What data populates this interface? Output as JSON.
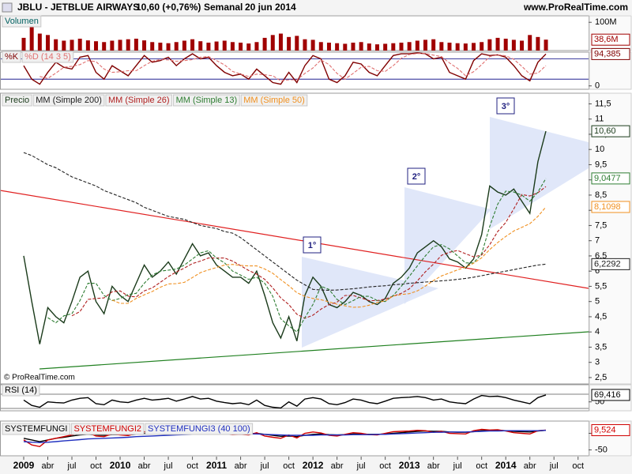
{
  "header": {
    "symbol": "JBLU - JETBLUE AIRWAYS",
    "quote": "10,60 (+0,76%)",
    "period": "Semanal",
    "date": "20 jun 2014",
    "site": "www.ProRealTime.com"
  },
  "watermark": "© ProRealTime.com",
  "time_axis": {
    "categories": [
      "2009",
      null,
      null,
      "abr",
      null,
      null,
      "jul",
      null,
      null,
      "oct",
      null,
      null,
      "2010",
      null,
      null,
      "abr",
      null,
      null,
      "jul",
      null,
      null,
      "oct",
      null,
      null,
      "2011",
      null,
      null,
      "abr",
      null,
      null,
      "jul",
      null,
      null,
      "oct",
      null,
      null,
      "2012",
      null,
      null,
      "abr",
      null,
      null,
      "jul",
      null,
      null,
      "oct",
      null,
      null,
      "2013",
      null,
      null,
      "abr",
      null,
      null,
      "jul",
      null,
      null,
      "oct",
      null,
      null,
      "2014",
      null,
      null,
      "abr",
      null,
      null,
      "jul",
      null,
      null,
      "oct",
      null,
      null
    ]
  },
  "chart_data": [
    {
      "type": "bar",
      "ylim": [
        0,
        123
      ],
      "yticks": [
        {
          "value": 100,
          "label": "100M"
        }
      ],
      "series": [
        {
          "name": "Volumen",
          "color": "#a00000",
          "legend_color": "#006060",
          "values": [
            45,
            112,
            60,
            55,
            40,
            35,
            38,
            42,
            36,
            33,
            30,
            35,
            38,
            40,
            42,
            36,
            30,
            28,
            26,
            30,
            35,
            40,
            33,
            28,
            32,
            35,
            30,
            28,
            25,
            30,
            45,
            55,
            60,
            48,
            52,
            40,
            38,
            30,
            28,
            26,
            24,
            28,
            30,
            25,
            22,
            24,
            26,
            28,
            30,
            35,
            38,
            40,
            30,
            28,
            26,
            25,
            27,
            30,
            40,
            45,
            42,
            38,
            35,
            55,
            48,
            38.6,
            null,
            null,
            null,
            null,
            null,
            null
          ],
          "value_labels": {
            "65": "38,6M"
          }
        }
      ]
    },
    {
      "type": "line",
      "ylim": [
        -10,
        100
      ],
      "yticks": [
        0
      ],
      "series": [
        {
          "name": "%K",
          "color": "#800000",
          "values": [
            60,
            20,
            5,
            40,
            70,
            55,
            50,
            85,
            90,
            40,
            20,
            60,
            45,
            30,
            60,
            90,
            70,
            75,
            85,
            60,
            80,
            95,
            80,
            85,
            60,
            40,
            30,
            35,
            20,
            50,
            30,
            10,
            5,
            40,
            10,
            60,
            90,
            80,
            20,
            10,
            30,
            70,
            65,
            40,
            30,
            60,
            90,
            95,
            95,
            98,
            95,
            80,
            85,
            40,
            30,
            20,
            75,
            95,
            90,
            92,
            85,
            60,
            30,
            15,
            70,
            94.385,
            null,
            null,
            null,
            null,
            null,
            null
          ],
          "value_labels": {
            "65": "94,385"
          }
        },
        {
          "name": "%D (14 3 5)",
          "color": "#e07070",
          "dash": true,
          "values": [
            null,
            null,
            28,
            22,
            38,
            55,
            58,
            63,
            75,
            72,
            50,
            40,
            42,
            45,
            45,
            60,
            73,
            78,
            77,
            73,
            75,
            78,
            85,
            87,
            75,
            62,
            43,
            35,
            28,
            35,
            33,
            30,
            15,
            18,
            18,
            37,
            53,
            77,
            63,
            37,
            20,
            37,
            55,
            58,
            45,
            43,
            60,
            82,
            93,
            96,
            96,
            91,
            87,
            68,
            52,
            30,
            42,
            63,
            87,
            92,
            89,
            79,
            58,
            35,
            38,
            60,
            null,
            null,
            null,
            null,
            null,
            null
          ]
        }
      ]
    },
    {
      "type": "line",
      "ylim": [
        2.29,
        11.85
      ],
      "yticks": [
        {
          "value": 2.5,
          "label": "2,5"
        },
        3,
        {
          "value": 3.5,
          "label": "3,5"
        },
        4,
        {
          "value": 4.5,
          "label": "4,5"
        },
        5,
        {
          "value": 5.5,
          "label": "5,5"
        },
        6,
        {
          "value": 6.5,
          "label": "6,5"
        },
        7,
        {
          "value": 7.5,
          "label": "7,5"
        },
        8,
        {
          "value": 8.5,
          "label": "8,5"
        },
        9,
        {
          "value": 9.5,
          "label": "9,5"
        },
        10,
        {
          "value": 10.5,
          "label": "10,5"
        },
        11,
        {
          "value": 11.5,
          "label": "11,5"
        }
      ],
      "annotations": [
        "1°",
        "2°",
        "3°"
      ],
      "series": [
        {
          "name": "Precio",
          "color": "#1a3a1a",
          "values": [
            6.5,
            5.0,
            3.6,
            4.8,
            4.5,
            4.3,
            5.0,
            5.8,
            6.0,
            5.0,
            4.6,
            5.5,
            5.2,
            5.0,
            5.6,
            6.2,
            5.8,
            6.0,
            6.3,
            5.9,
            6.4,
            6.9,
            6.5,
            6.6,
            6.2,
            6.0,
            5.8,
            5.8,
            5.6,
            6.0,
            5.2,
            4.3,
            3.8,
            4.5,
            3.7,
            5.2,
            5.8,
            5.5,
            4.9,
            4.8,
            5.0,
            5.3,
            5.2,
            5.0,
            4.9,
            5.1,
            5.6,
            5.8,
            6.1,
            6.6,
            6.8,
            7.0,
            6.8,
            6.4,
            6.3,
            6.1,
            6.4,
            7.2,
            8.8,
            8.6,
            8.5,
            8.7,
            8.3,
            7.9,
            9.6,
            10.6,
            null,
            null,
            null,
            null,
            null,
            null
          ],
          "value_labels": {
            "65": "10,60"
          }
        },
        {
          "name": "MM (Simple 200)",
          "color": "#202020",
          "dash": true,
          "values": [
            9.9,
            9.8,
            9.65,
            9.5,
            9.4,
            9.25,
            9.1,
            9.0,
            8.9,
            8.8,
            8.65,
            8.55,
            8.45,
            8.35,
            8.25,
            8.1,
            8.0,
            7.9,
            7.8,
            7.75,
            7.7,
            7.6,
            7.5,
            7.45,
            7.4,
            7.3,
            7.25,
            7.1,
            6.9,
            6.7,
            6.5,
            6.3,
            6.1,
            5.9,
            5.7,
            5.55,
            5.4,
            5.38,
            5.37,
            5.38,
            5.4,
            5.42,
            5.45,
            5.48,
            5.5,
            5.52,
            5.55,
            5.57,
            5.6,
            5.62,
            5.64,
            5.66,
            5.68,
            5.7,
            5.73,
            5.76,
            5.8,
            5.85,
            5.9,
            5.95,
            6.0,
            6.05,
            6.1,
            6.15,
            6.2,
            6.2292,
            null,
            null,
            null,
            null,
            null,
            null
          ],
          "value_labels": {
            "65": "6,2292"
          }
        },
        {
          "name": "MM (Simple 26)",
          "color": "#b02020",
          "dash": true,
          "values": [
            null,
            null,
            null,
            null,
            null,
            null,
            4.53,
            4.67,
            5.07,
            5.1,
            5.12,
            5.32,
            5.35,
            5.18,
            5.15,
            5.35,
            5.45,
            5.63,
            5.82,
            5.97,
            6.1,
            6.25,
            6.33,
            6.43,
            6.43,
            6.43,
            6.33,
            6.18,
            6.02,
            5.9,
            5.73,
            5.45,
            5.12,
            4.9,
            4.58,
            4.45,
            4.55,
            4.75,
            4.9,
            4.98,
            5.2,
            5.2,
            5.12,
            5.03,
            5.03,
            5.08,
            5.18,
            5.27,
            5.42,
            5.68,
            5.98,
            6.23,
            6.52,
            6.62,
            6.68,
            6.57,
            6.47,
            6.53,
            6.87,
            7.3,
            7.6,
            8.05,
            8.52,
            8.47,
            8.58,
            8.78,
            null,
            null,
            null,
            null,
            null,
            null
          ]
        },
        {
          "name": "MM (Simple 13)",
          "color": "#2e7d32",
          "dash": true,
          "values": [
            null,
            null,
            null,
            4.47,
            4.3,
            4.53,
            4.6,
            5.03,
            5.6,
            5.6,
            5.2,
            5.03,
            5.1,
            5.23,
            5.27,
            5.6,
            5.87,
            6.0,
            6.03,
            6.07,
            6.2,
            6.4,
            6.6,
            6.67,
            6.43,
            6.27,
            6.0,
            5.87,
            5.73,
            5.8,
            5.6,
            5.17,
            4.43,
            4.2,
            4.0,
            4.47,
            4.9,
            5.5,
            5.4,
            5.07,
            4.9,
            5.03,
            5.17,
            5.17,
            5.03,
            5.0,
            5.2,
            5.5,
            5.83,
            6.17,
            6.5,
            6.8,
            6.87,
            6.73,
            6.5,
            6.27,
            6.27,
            6.57,
            7.47,
            8.2,
            8.63,
            8.6,
            8.5,
            8.3,
            8.6,
            9.0477,
            null,
            null,
            null,
            null,
            null,
            null
          ],
          "value_labels": {
            "65": "9,0477"
          }
        },
        {
          "name": "MM (Simple 50)",
          "color": "#f09020",
          "dash": true,
          "values": [
            null,
            null,
            null,
            null,
            null,
            null,
            null,
            null,
            null,
            null,
            null,
            5.05,
            4.94,
            4.94,
            5.1,
            5.22,
            5.33,
            5.47,
            5.58,
            5.59,
            5.63,
            5.79,
            5.95,
            6.04,
            6.12,
            6.2,
            6.22,
            6.19,
            6.17,
            6.17,
            6.07,
            5.93,
            5.72,
            5.52,
            5.29,
            5.17,
            5.1,
            5.06,
            4.99,
            4.91,
            4.86,
            4.81,
            4.82,
            4.88,
            4.97,
            5.02,
            5.18,
            5.23,
            5.26,
            5.35,
            5.51,
            5.69,
            5.84,
            5.94,
            6.04,
            6.13,
            6.26,
            6.44,
            6.71,
            6.94,
            7.14,
            7.32,
            7.44,
            7.56,
            7.8,
            8.1098,
            null,
            null,
            null,
            null,
            null,
            null
          ],
          "value_labels": {
            "65": "8,1098"
          }
        }
      ]
    },
    {
      "type": "line",
      "ylim": [
        25,
        98
      ],
      "yticks": [
        50
      ],
      "series": [
        {
          "name": "RSI (14)",
          "color": "#000000",
          "values": [
            55,
            40,
            35,
            50,
            48,
            47,
            55,
            60,
            62,
            45,
            42,
            55,
            50,
            48,
            55,
            60,
            55,
            57,
            60,
            52,
            58,
            65,
            58,
            60,
            52,
            48,
            45,
            47,
            42,
            55,
            40,
            35,
            33,
            50,
            38,
            58,
            62,
            58,
            45,
            42,
            48,
            58,
            55,
            48,
            45,
            52,
            60,
            62,
            63,
            65,
            62,
            55,
            58,
            50,
            47,
            45,
            58,
            68,
            65,
            66,
            62,
            55,
            50,
            45,
            62,
            69.416,
            null,
            null,
            null,
            null,
            null,
            null
          ],
          "value_labels": {
            "65": "69,416"
          }
        }
      ]
    },
    {
      "type": "line",
      "ylim": [
        -68,
        37
      ],
      "yticks": [
        0,
        -50
      ],
      "series": [
        {
          "name": "SYSTEMFUNGI",
          "color": "#000000",
          "values": [
            -15,
            -20,
            -25,
            -20,
            -15,
            -12,
            -8,
            -5,
            -3,
            -5,
            -6,
            -4,
            -4,
            -5,
            -3,
            0,
            -1,
            0,
            2,
            1,
            3,
            5,
            4,
            5,
            3,
            2,
            0,
            -1,
            -2,
            0,
            -3,
            -6,
            -9,
            -8,
            -10,
            -6,
            -3,
            -2,
            -4,
            -5,
            -4,
            -2,
            -2,
            -3,
            -3,
            -2,
            0,
            2,
            4,
            6,
            7,
            6,
            6,
            4,
            3,
            3,
            5,
            8,
            9,
            9,
            8,
            6,
            5,
            4,
            7,
            9,
            null,
            null,
            null,
            null,
            null,
            null
          ]
        },
        {
          "name": "SYSTEMFUNGI2",
          "color": "#d00000",
          "values": [
            -20,
            -35,
            -40,
            -20,
            -15,
            -10,
            -5,
            0,
            2,
            -8,
            -10,
            -2,
            -5,
            -7,
            0,
            5,
            1,
            2,
            4,
            -1,
            5,
            8,
            3,
            6,
            0,
            -2,
            -4,
            -3,
            -5,
            2,
            -8,
            -12,
            -15,
            -5,
            -14,
            0,
            4,
            1,
            -6,
            -8,
            -3,
            2,
            0,
            -4,
            -5,
            0,
            5,
            6,
            7,
            9,
            8,
            3,
            6,
            0,
            -1,
            -2,
            8,
            12,
            10,
            11,
            7,
            2,
            0,
            -2,
            8,
            9.524,
            null,
            null,
            null,
            null,
            null,
            null
          ],
          "value_labels": {
            "65": "9,524"
          }
        },
        {
          "name": "SYSTEMFUNGI3 (40 100)",
          "color": "#2030c0",
          "values": [
            -25,
            -27,
            -28,
            -27,
            -25,
            -23,
            -21,
            -19,
            -17,
            -16,
            -15,
            -14,
            -13,
            -12,
            -10,
            -9,
            -8,
            -7,
            -6,
            -5,
            -4,
            -3,
            -2,
            -1,
            -1,
            -1,
            -1,
            -2,
            -2,
            -2,
            -3,
            -4,
            -5,
            -6,
            -6,
            -6,
            -6,
            -5,
            -5,
            -5,
            -5,
            -4,
            -4,
            -4,
            -3,
            -3,
            -2,
            -1,
            0,
            1,
            2,
            3,
            3,
            4,
            4,
            4,
            5,
            6,
            7,
            7,
            8,
            8,
            8,
            8,
            8,
            9,
            null,
            null,
            null,
            null,
            null,
            null
          ]
        }
      ]
    }
  ]
}
